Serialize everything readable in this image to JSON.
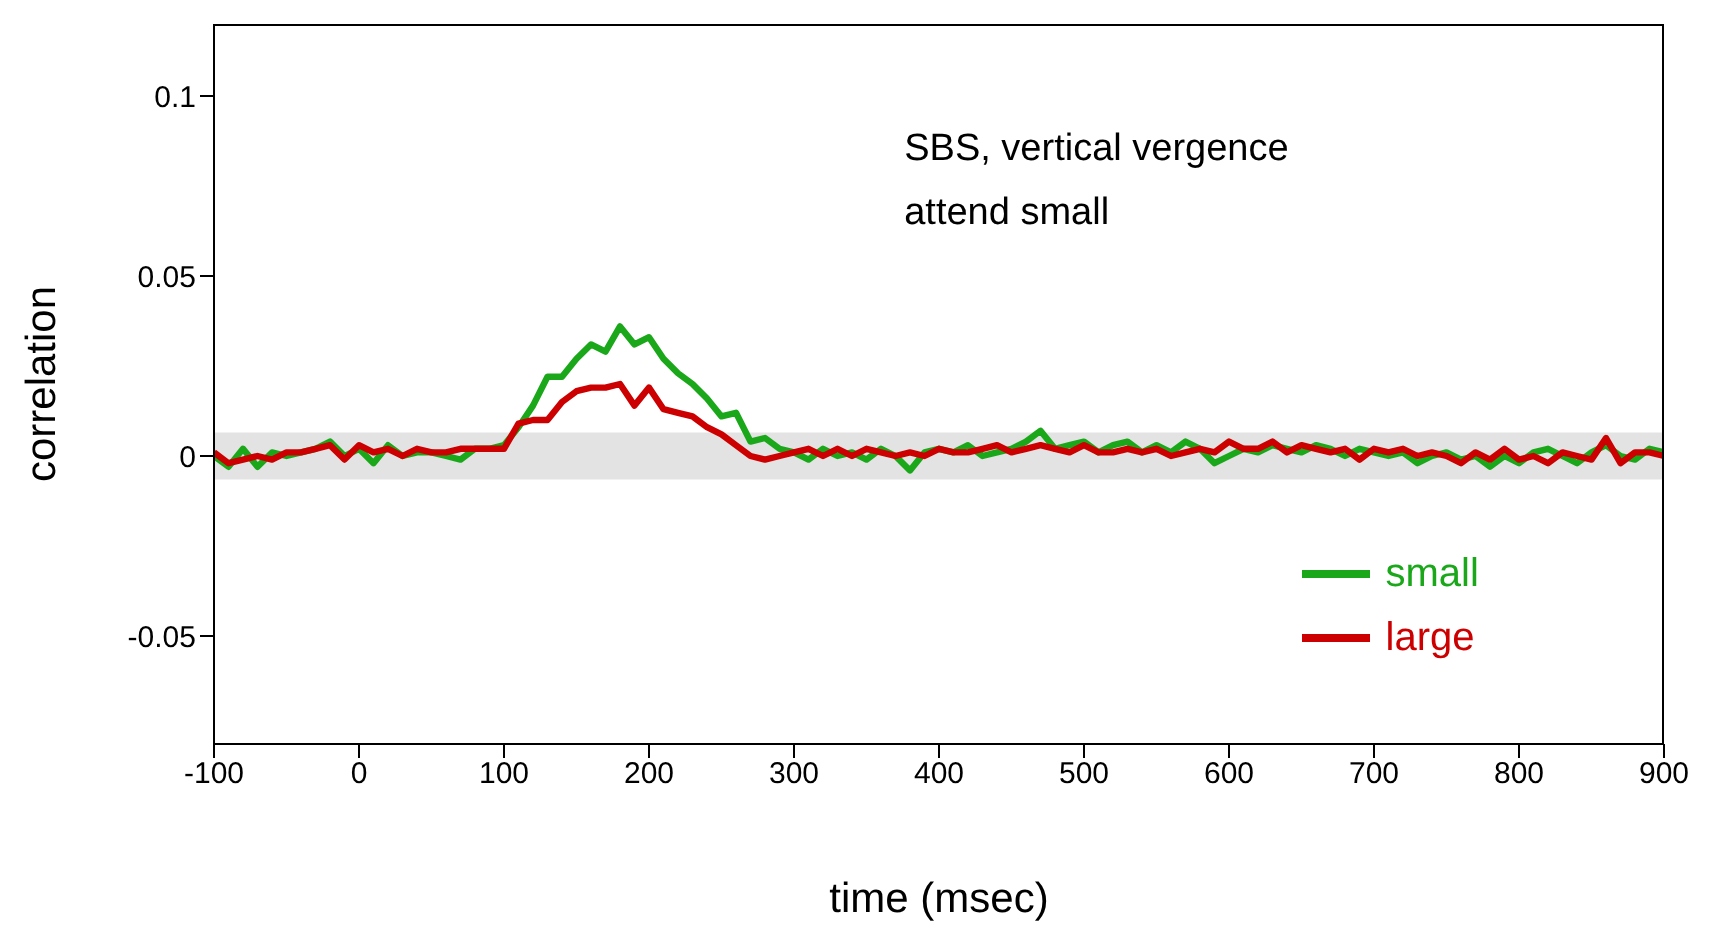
{
  "chart_data": {
    "type": "line",
    "xlabel": "time (msec)",
    "ylabel": "correlation",
    "annotations": [
      "SBS, vertical vergence",
      "attend small"
    ],
    "x": [
      -100,
      -90,
      -80,
      -70,
      -60,
      -50,
      -40,
      -30,
      -20,
      -10,
      0,
      10,
      20,
      30,
      40,
      50,
      60,
      70,
      80,
      90,
      100,
      110,
      120,
      130,
      140,
      150,
      160,
      170,
      180,
      190,
      200,
      210,
      220,
      230,
      240,
      250,
      260,
      270,
      280,
      290,
      300,
      310,
      320,
      330,
      340,
      350,
      360,
      370,
      380,
      390,
      400,
      410,
      420,
      430,
      440,
      450,
      460,
      470,
      480,
      490,
      500,
      510,
      520,
      530,
      540,
      550,
      560,
      570,
      580,
      590,
      600,
      610,
      620,
      630,
      640,
      650,
      660,
      670,
      680,
      690,
      700,
      710,
      720,
      730,
      740,
      750,
      760,
      770,
      780,
      790,
      800,
      810,
      820,
      830,
      840,
      850,
      860,
      870,
      880,
      890,
      900
    ],
    "series": [
      {
        "name": "small",
        "color": "#1aa81a",
        "values": [
          0,
          -0.003,
          0.002,
          -0.003,
          0.001,
          0,
          0.001,
          0.002,
          0.004,
          0,
          0.002,
          -0.002,
          0.003,
          0,
          0.001,
          0.001,
          0,
          -0.001,
          0.002,
          0.002,
          0.003,
          0.008,
          0.014,
          0.022,
          0.022,
          0.027,
          0.031,
          0.029,
          0.036,
          0.031,
          0.033,
          0.027,
          0.023,
          0.02,
          0.016,
          0.011,
          0.012,
          0.004,
          0.005,
          0.002,
          0.001,
          -0.001,
          0.002,
          0,
          0.001,
          -0.001,
          0.002,
          0,
          -0.004,
          0.001,
          0.002,
          0.001,
          0.003,
          0,
          0.001,
          0.002,
          0.004,
          0.007,
          0.002,
          0.003,
          0.004,
          0.001,
          0.003,
          0.004,
          0.001,
          0.003,
          0.001,
          0.004,
          0.002,
          -0.002,
          0,
          0.002,
          0.001,
          0.003,
          0.002,
          0.001,
          0.003,
          0.002,
          0,
          0.002,
          0.001,
          0,
          0.001,
          -0.002,
          0,
          0.001,
          -0.001,
          0,
          -0.003,
          0,
          -0.002,
          0.001,
          0.002,
          0,
          -0.002,
          0.001,
          0.003,
          0,
          -0.001,
          0.002,
          0.001
        ]
      },
      {
        "name": "large",
        "color": "#cc0000",
        "values": [
          0.001,
          -0.002,
          -0.001,
          0,
          -0.001,
          0.001,
          0.001,
          0.002,
          0.003,
          -0.001,
          0.003,
          0.001,
          0.002,
          0,
          0.002,
          0.001,
          0.001,
          0.002,
          0.002,
          0.002,
          0.002,
          0.009,
          0.01,
          0.01,
          0.015,
          0.018,
          0.019,
          0.019,
          0.02,
          0.014,
          0.019,
          0.013,
          0.012,
          0.011,
          0.008,
          0.006,
          0.003,
          0,
          -0.001,
          0,
          0.001,
          0.002,
          0,
          0.002,
          0,
          0.002,
          0.001,
          0,
          0.001,
          0,
          0.002,
          0.001,
          0.001,
          0.002,
          0.003,
          0.001,
          0.002,
          0.003,
          0.002,
          0.001,
          0.003,
          0.001,
          0.001,
          0.002,
          0.001,
          0.002,
          0,
          0.001,
          0.002,
          0.001,
          0.004,
          0.002,
          0.002,
          0.004,
          0.001,
          0.003,
          0.002,
          0.001,
          0.002,
          -0.001,
          0.002,
          0.001,
          0.002,
          0,
          0.001,
          0,
          -0.002,
          0.001,
          -0.001,
          0.002,
          -0.001,
          0,
          -0.002,
          0.001,
          0,
          -0.001,
          0.005,
          -0.002,
          0.001,
          0.001,
          0
        ]
      }
    ],
    "xlim": [
      -100,
      900
    ],
    "xticks": [
      -100,
      0,
      100,
      200,
      300,
      400,
      500,
      600,
      700,
      800,
      900
    ],
    "ylim": [
      -0.08,
      0.12
    ],
    "yticks": [
      -0.05,
      0,
      0.05,
      0.1
    ],
    "bands": [
      {
        "axis": "y",
        "from": -0.0065,
        "to": 0.0065,
        "color": "#e3e3e3"
      }
    ],
    "grid": false,
    "legend": "bottom right",
    "marker": "none",
    "line_style": "solid"
  }
}
